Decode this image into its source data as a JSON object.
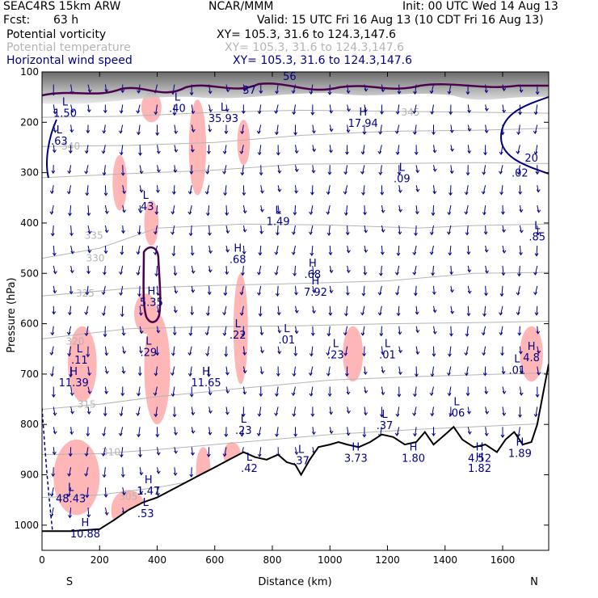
{
  "header": {
    "model": "SEAC4RS 15km ARW",
    "org": "NCAR/MMM",
    "init": "Init: 00 UTC Wed 14 Aug 13",
    "fcst_label": "Fcst:",
    "fcst_value": "63 h",
    "valid": "Valid: 15 UTC Fri 16 Aug 13 (10 CDT Fri 16 Aug 13)"
  },
  "fields": [
    {
      "label": "Potential vorticity",
      "xy": "XY= 105.3, 31.6 to 124.3,147.6",
      "color": "#000000"
    },
    {
      "label": "Potential temperature",
      "xy": "XY= 105.3, 31.6 to 124.3,147.6",
      "color": "#b4b4b4"
    },
    {
      "label": "Horizontal wind speed",
      "xy": "XY= 105.3, 31.6 to 124.3,147.6",
      "color": "#00008b"
    }
  ],
  "colors": {
    "pv_fill": "#ffb6b6",
    "pv_contour": "#4b0050",
    "theta": "#b4b4b4",
    "wind": "#00008b",
    "terrain": "#000000",
    "high_speed_gray": "#606060"
  },
  "chart_data": {
    "type": "cross-section",
    "xlabel": "Distance (km)",
    "ylabel": "Pressure (hPa)",
    "xlim": [
      0,
      1760
    ],
    "ylim": [
      1050,
      100
    ],
    "x_ticks": [
      0,
      200,
      400,
      600,
      800,
      1000,
      1200,
      1400,
      1600
    ],
    "y_ticks": [
      100,
      200,
      300,
      400,
      500,
      600,
      700,
      800,
      900,
      1000
    ],
    "left_end_label": "S",
    "right_end_label": "N",
    "terrain": [
      [
        0,
        1012
      ],
      [
        100,
        1012
      ],
      [
        200,
        1008
      ],
      [
        250,
        990
      ],
      [
        300,
        970
      ],
      [
        350,
        955
      ],
      [
        400,
        945
      ],
      [
        450,
        930
      ],
      [
        500,
        915
      ],
      [
        550,
        900
      ],
      [
        600,
        885
      ],
      [
        650,
        870
      ],
      [
        700,
        855
      ],
      [
        740,
        865
      ],
      [
        780,
        870
      ],
      [
        820,
        860
      ],
      [
        850,
        875
      ],
      [
        880,
        880
      ],
      [
        900,
        900
      ],
      [
        930,
        870
      ],
      [
        960,
        845
      ],
      [
        1000,
        840
      ],
      [
        1030,
        835
      ],
      [
        1060,
        840
      ],
      [
        1100,
        845
      ],
      [
        1140,
        835
      ],
      [
        1180,
        820
      ],
      [
        1220,
        825
      ],
      [
        1260,
        840
      ],
      [
        1300,
        835
      ],
      [
        1330,
        815
      ],
      [
        1360,
        840
      ],
      [
        1400,
        820
      ],
      [
        1430,
        805
      ],
      [
        1460,
        830
      ],
      [
        1500,
        845
      ],
      [
        1540,
        840
      ],
      [
        1580,
        855
      ],
      [
        1610,
        830
      ],
      [
        1640,
        815
      ],
      [
        1670,
        840
      ],
      [
        1700,
        835
      ],
      [
        1720,
        800
      ],
      [
        1740,
        740
      ],
      [
        1760,
        680
      ]
    ],
    "theta_isentropes": [
      {
        "label": "345",
        "points": [
          [
            0,
            190
          ],
          [
            300,
            188
          ],
          [
            600,
            180
          ],
          [
            900,
            176
          ],
          [
            1200,
            178
          ],
          [
            1500,
            180
          ],
          [
            1760,
            182
          ]
        ],
        "label_at": [
          1280,
          180
        ]
      },
      {
        "label": "340",
        "points": [
          [
            0,
            248
          ],
          [
            300,
            246
          ],
          [
            600,
            240
          ],
          [
            900,
            226
          ],
          [
            1200,
            218
          ],
          [
            1500,
            216
          ],
          [
            1760,
            212
          ]
        ],
        "label_at": [
          100,
          248
        ]
      },
      {
        "label": "335",
        "points": [
          [
            0,
            310
          ],
          [
            300,
            302
          ],
          [
            600,
            295
          ],
          [
            900,
            283
          ],
          [
            1200,
            282
          ],
          [
            1500,
            280
          ],
          [
            1760,
            282
          ]
        ],
        "label_at": [
          180,
          425
        ]
      },
      {
        "label": "330",
        "points": [
          [
            0,
            470
          ],
          [
            200,
            450
          ],
          [
            400,
            410
          ],
          [
            700,
            402
          ],
          [
            1000,
            404
          ],
          [
            1300,
            410
          ],
          [
            1500,
            405
          ],
          [
            1760,
            402
          ]
        ],
        "label_at": [
          185,
          470
        ]
      },
      {
        "label": "325",
        "points": [
          [
            0,
            545
          ],
          [
            300,
            530
          ],
          [
            600,
            524
          ],
          [
            900,
            520
          ],
          [
            1200,
            515
          ],
          [
            1500,
            500
          ],
          [
            1760,
            498
          ]
        ],
        "label_at": [
          150,
          540
        ]
      },
      {
        "label": "320",
        "points": [
          [
            0,
            630
          ],
          [
            300,
            610
          ],
          [
            600,
            606
          ],
          [
            900,
            604
          ],
          [
            1200,
            600
          ],
          [
            1500,
            598
          ],
          [
            1760,
            595
          ]
        ],
        "label_at": [
          115,
          635
        ]
      },
      {
        "label": "315",
        "points": [
          [
            0,
            770
          ],
          [
            200,
            760
          ],
          [
            400,
            745
          ],
          [
            700,
            728
          ],
          [
            1000,
            712
          ],
          [
            1300,
            705
          ],
          [
            1600,
            700
          ],
          [
            1760,
            698
          ]
        ],
        "label_at": [
          155,
          760
        ]
      },
      {
        "label": "310",
        "points": [
          [
            0,
            860
          ],
          [
            200,
            858
          ],
          [
            400,
            850
          ],
          [
            700,
            835
          ],
          [
            1000,
            820
          ],
          [
            1300,
            810
          ],
          [
            1600,
            802
          ],
          [
            1760,
            798
          ]
        ],
        "label_at": [
          240,
          855
        ]
      },
      {
        "label": "305",
        "points": [
          [
            0,
            945
          ],
          [
            200,
            940
          ],
          [
            400,
            925
          ],
          [
            600,
            905
          ]
        ],
        "label_at": [
          300,
          943
        ]
      }
    ],
    "wind_speed_labels": [
      {
        "text": "56",
        "x": 860,
        "p": 108
      },
      {
        "text": "37",
        "x": 720,
        "p": 135
      },
      {
        "text": "20",
        "x": 1700,
        "p": 270
      },
      {
        "text": ".02",
        "x": 1660,
        "p": 300
      }
    ],
    "pv_extrema": [
      {
        "kind": "L",
        "value": "1.50",
        "x": 80,
        "p": 170
      },
      {
        "kind": "L",
        "value": ".40",
        "x": 470,
        "p": 160
      },
      {
        "kind": "L",
        "value": "35.93",
        "x": 630,
        "p": 180
      },
      {
        "kind": "H",
        "value": "17.94",
        "x": 1115,
        "p": 190
      },
      {
        "kind": "L",
        "value": ".63",
        "x": 60,
        "p": 225
      },
      {
        "kind": "L",
        "value": ".09",
        "x": 1250,
        "p": 300
      },
      {
        "kind": "L",
        "value": ".43",
        "x": 360,
        "p": 355
      },
      {
        "kind": "L",
        "value": "1.49",
        "x": 820,
        "p": 385
      },
      {
        "kind": "L",
        "value": ".85",
        "x": 1720,
        "p": 415
      },
      {
        "kind": "H",
        "value": ".68",
        "x": 680,
        "p": 460
      },
      {
        "kind": "H",
        "value": ".68",
        "x": 940,
        "p": 490
      },
      {
        "kind": "H",
        "value": "7.92",
        "x": 950,
        "p": 525
      },
      {
        "kind": "H",
        "value": "5.35",
        "x": 380,
        "p": 545
      },
      {
        "kind": "L",
        "value": ".22",
        "x": 680,
        "p": 610
      },
      {
        "kind": "L",
        "value": ".01",
        "x": 850,
        "p": 620
      },
      {
        "kind": "L",
        "value": ".29",
        "x": 370,
        "p": 645
      },
      {
        "kind": "L",
        "value": ".01",
        "x": 1200,
        "p": 650
      },
      {
        "kind": "L",
        "value": ".23",
        "x": 1020,
        "p": 650
      },
      {
        "kind": "H",
        "value": "4.8",
        "x": 1700,
        "p": 655
      },
      {
        "kind": "L",
        "value": ".11",
        "x": 130,
        "p": 660
      },
      {
        "kind": "L",
        "value": ".01",
        "x": 1650,
        "p": 680
      },
      {
        "kind": "H",
        "value": "11.39",
        "x": 110,
        "p": 705
      },
      {
        "kind": "H",
        "value": "11.65",
        "x": 570,
        "p": 705
      },
      {
        "kind": "L",
        "value": ".06",
        "x": 1440,
        "p": 765
      },
      {
        "kind": "L",
        "value": ".37",
        "x": 1190,
        "p": 790
      },
      {
        "kind": "L",
        "value": ".23",
        "x": 700,
        "p": 800
      },
      {
        "kind": "L",
        "value": ".37",
        "x": 900,
        "p": 860
      },
      {
        "kind": "H",
        "value": "3.73",
        "x": 1090,
        "p": 855
      },
      {
        "kind": "H",
        "value": "1.80",
        "x": 1290,
        "p": 855
      },
      {
        "kind": "H",
        "value": "4.52",
        "x": 1520,
        "p": 855
      },
      {
        "kind": "H",
        "value": "1.82",
        "x": 1520,
        "p": 875
      },
      {
        "kind": "H",
        "value": "1.89",
        "x": 1660,
        "p": 845
      },
      {
        "kind": "L",
        "value": ".42",
        "x": 720,
        "p": 875
      },
      {
        "kind": "H",
        "value": "1.47",
        "x": 370,
        "p": 920
      },
      {
        "kind": "L",
        "value": "48.43",
        "x": 100,
        "p": 935
      },
      {
        "kind": "L",
        "value": ".53",
        "x": 360,
        "p": 965
      },
      {
        "kind": "H",
        "value": "10.88",
        "x": 150,
        "p": 1005
      }
    ],
    "pv_pink_regions": [
      {
        "cx": 380,
        "cp": 170,
        "rx": 35,
        "rp": 30
      },
      {
        "cx": 540,
        "cp": 250,
        "rx": 30,
        "rp": 95
      },
      {
        "cx": 700,
        "cp": 240,
        "rx": 22,
        "rp": 45
      },
      {
        "cx": 270,
        "cp": 320,
        "rx": 25,
        "rp": 55
      },
      {
        "cx": 380,
        "cp": 400,
        "rx": 25,
        "rp": 45
      },
      {
        "cx": 360,
        "cp": 580,
        "rx": 40,
        "rp": 40
      },
      {
        "cx": 140,
        "cp": 680,
        "rx": 50,
        "rp": 75
      },
      {
        "cx": 400,
        "cp": 690,
        "rx": 45,
        "rp": 110
      },
      {
        "cx": 690,
        "cp": 610,
        "rx": 25,
        "rp": 110
      },
      {
        "cx": 1080,
        "cp": 660,
        "rx": 35,
        "rp": 55
      },
      {
        "cx": 1700,
        "cp": 660,
        "rx": 40,
        "rp": 55
      },
      {
        "cx": 660,
        "cp": 860,
        "rx": 30,
        "rp": 25
      },
      {
        "cx": 120,
        "cp": 905,
        "rx": 80,
        "rp": 75
      },
      {
        "cx": 300,
        "cp": 970,
        "rx": 60,
        "rp": 40
      },
      {
        "cx": 560,
        "cp": 890,
        "rx": 25,
        "rp": 45
      }
    ]
  }
}
